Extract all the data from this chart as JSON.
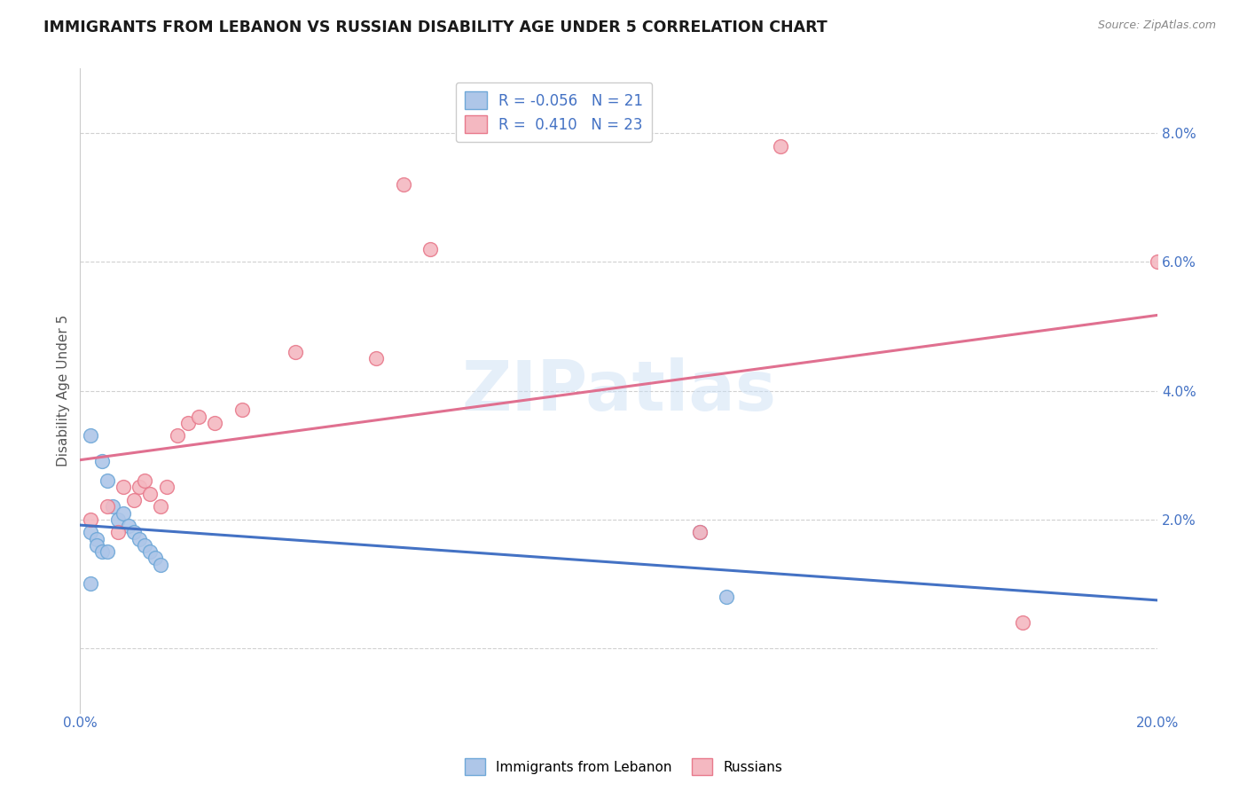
{
  "title": "IMMIGRANTS FROM LEBANON VS RUSSIAN DISABILITY AGE UNDER 5 CORRELATION CHART",
  "source": "Source: ZipAtlas.com",
  "ylabel": "Disability Age Under 5",
  "xlim": [
    0.0,
    0.2
  ],
  "ylim": [
    -0.01,
    0.09
  ],
  "yticks": [
    0.0,
    0.02,
    0.04,
    0.06,
    0.08
  ],
  "ytick_labels": [
    "",
    "2.0%",
    "4.0%",
    "6.0%",
    "8.0%"
  ],
  "xticks": [
    0.0,
    0.05,
    0.1,
    0.15,
    0.2
  ],
  "xtick_labels": [
    "0.0%",
    "",
    "",
    "",
    "20.0%"
  ],
  "watermark": "ZIPatlas",
  "legend_r_leb": "R = -0.056",
  "legend_n_leb": "N = 21",
  "legend_r_rus": "R =  0.410",
  "legend_n_rus": "N = 23",
  "lebanon_points": [
    [
      0.002,
      0.033
    ],
    [
      0.004,
      0.029
    ],
    [
      0.005,
      0.026
    ],
    [
      0.006,
      0.022
    ],
    [
      0.007,
      0.02
    ],
    [
      0.008,
      0.021
    ],
    [
      0.009,
      0.019
    ],
    [
      0.01,
      0.018
    ],
    [
      0.011,
      0.017
    ],
    [
      0.012,
      0.016
    ],
    [
      0.013,
      0.015
    ],
    [
      0.014,
      0.014
    ],
    [
      0.015,
      0.013
    ],
    [
      0.002,
      0.018
    ],
    [
      0.003,
      0.017
    ],
    [
      0.003,
      0.016
    ],
    [
      0.004,
      0.015
    ],
    [
      0.005,
      0.015
    ],
    [
      0.002,
      0.01
    ],
    [
      0.115,
      0.018
    ],
    [
      0.12,
      0.008
    ]
  ],
  "russian_points": [
    [
      0.002,
      0.02
    ],
    [
      0.005,
      0.022
    ],
    [
      0.007,
      0.018
    ],
    [
      0.008,
      0.025
    ],
    [
      0.01,
      0.023
    ],
    [
      0.011,
      0.025
    ],
    [
      0.012,
      0.026
    ],
    [
      0.013,
      0.024
    ],
    [
      0.015,
      0.022
    ],
    [
      0.016,
      0.025
    ],
    [
      0.018,
      0.033
    ],
    [
      0.02,
      0.035
    ],
    [
      0.022,
      0.036
    ],
    [
      0.025,
      0.035
    ],
    [
      0.03,
      0.037
    ],
    [
      0.04,
      0.046
    ],
    [
      0.055,
      0.045
    ],
    [
      0.06,
      0.072
    ],
    [
      0.065,
      0.062
    ],
    [
      0.115,
      0.018
    ],
    [
      0.13,
      0.078
    ],
    [
      0.175,
      0.004
    ],
    [
      0.2,
      0.06
    ]
  ],
  "lebanon_color": "#aec6e8",
  "lebanon_edge": "#6fa8d8",
  "russian_color": "#f4b8c1",
  "russian_edge": "#e87a8c",
  "lebanon_line_color": "#4472c4",
  "russian_line_color": "#e07090",
  "background_color": "#ffffff",
  "grid_color": "#d0d0d0",
  "title_fontsize": 12.5,
  "axis_label_fontsize": 11,
  "tick_fontsize": 11,
  "legend_fontsize": 12,
  "marker_size": 130
}
